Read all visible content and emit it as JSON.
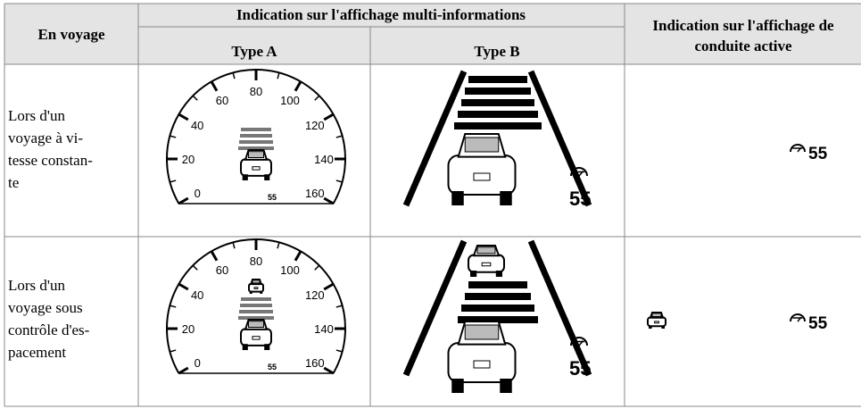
{
  "table": {
    "header": {
      "col1": "En voyage",
      "group": "Indication sur l'affichage multi-informations",
      "type_a": "Type A",
      "type_b": "Type B",
      "active": [
        "Indication sur l'affichage de",
        "conduite active"
      ]
    },
    "rows": [
      {
        "label": [
          "Lors d'un",
          "voyage à vi-",
          "tesse constan-",
          "te"
        ],
        "set_speed": 55
      },
      {
        "label": [
          "Lors d'un",
          "voyage sous",
          "contrôle d'es-",
          "pacement"
        ],
        "set_speed": 55
      }
    ]
  },
  "gauge": {
    "labels": [
      0,
      20,
      40,
      60,
      80,
      100,
      120,
      140,
      160
    ]
  }
}
